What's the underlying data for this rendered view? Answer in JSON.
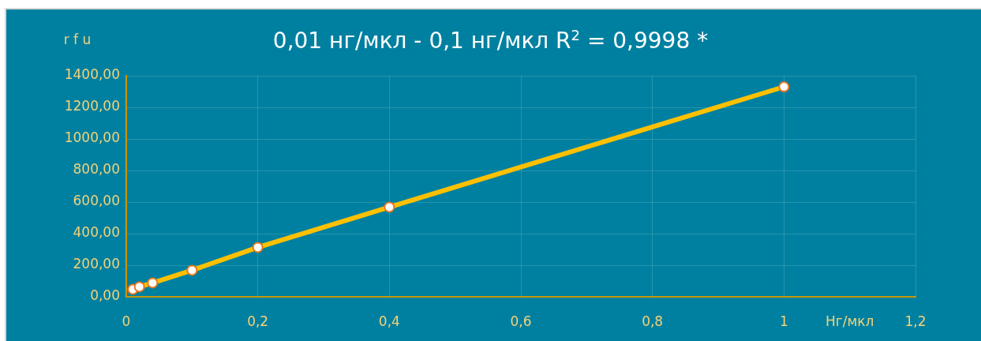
{
  "chart_data": {
    "type": "line",
    "title": "0,01 нг/мкл - 0,1 нг/мкл R$^{2}$ = 0,9998 *",
    "xlabel": "Нг/мкл",
    "ylabel": "r f u",
    "x": [
      0.01,
      0.02,
      0.04,
      0.1,
      0.2,
      0.4,
      1
    ],
    "series": [
      {
        "color": "#ffc000",
        "values": [
          47,
          63,
          88,
          168,
          313,
          568,
          1330
        ]
      }
    ],
    "xlim": [
      0,
      1.2
    ],
    "xticks": [
      0,
      {
        "value": 0.2,
        "label": "0,2"
      },
      {
        "value": 0.4,
        "label": "0,4"
      },
      {
        "value": 0.6,
        "label": "0,6"
      },
      {
        "value": 0.8,
        "label": "0,8"
      },
      1,
      {
        "value": 1.2,
        "label": "1,2"
      }
    ],
    "ylim": [
      0,
      1400
    ],
    "yticks": [
      {
        "value": 0,
        "label": "0,00"
      },
      {
        "value": 200,
        "label": "200,00"
      },
      {
        "value": 400,
        "label": "400,00"
      },
      {
        "value": 600,
        "label": "600,00"
      },
      {
        "value": 800,
        "label": "800,00"
      },
      {
        "value": 1000,
        "label": "1000,00"
      },
      {
        "value": 1200,
        "label": "1200,00"
      },
      {
        "value": 1400,
        "label": "1400,00"
      }
    ],
    "grid": true,
    "legend": false,
    "marker": "circle",
    "line_style": "solid"
  }
}
